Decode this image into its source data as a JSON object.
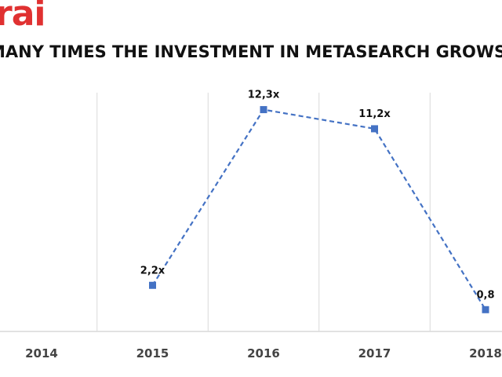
{
  "brand": {
    "text": "rai",
    "color": "#e03131"
  },
  "chart_data": {
    "type": "line",
    "title": "MANY TIMES THE INVESTMENT IN METASEARCH GROWS",
    "xlabel": "",
    "ylabel": "",
    "categories": [
      "2014",
      "2015",
      "2016",
      "2017",
      "2018"
    ],
    "series": [
      {
        "values": [
          null,
          2.2,
          12.3,
          11.2,
          0.8
        ],
        "labels": [
          "",
          "2,2x",
          "12,3x",
          "11,2x",
          "0,8"
        ],
        "color": "#4472c4",
        "line_style": "dashed",
        "marker": "square"
      }
    ],
    "ylim": [
      0,
      14
    ],
    "grid": "vertical",
    "legend": "none"
  },
  "colors": {
    "grid": "#d9d9d9",
    "axis": "#d9d9d9"
  }
}
